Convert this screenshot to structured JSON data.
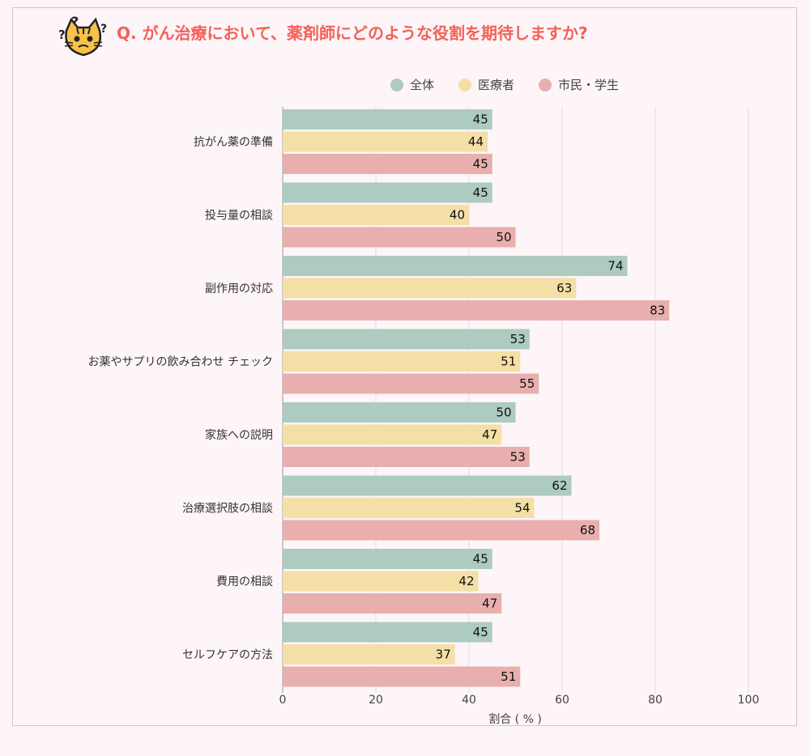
{
  "title": "Q. がん治療において、薬剤師にどのような役割を期待しますか?",
  "icons": {
    "mascot": "confused-cat-icon"
  },
  "colors": {
    "overall": "#adcbbf",
    "medical": "#f4dfa7",
    "citizen": "#e8afae"
  },
  "chart_data": {
    "type": "bar",
    "orientation": "horizontal",
    "xlabel": "割合 ( % )",
    "ylabel": "",
    "xlim": [
      0,
      100
    ],
    "xticks": [
      0,
      20,
      40,
      60,
      80,
      100
    ],
    "grid": true,
    "legend_position": "top-right",
    "categories": [
      "抗がん薬の準備",
      "投与量の相談",
      "副作用の対応",
      "お薬やサプリの飲み合わせ チェック",
      "家族への説明",
      "治療選択肢の相談",
      "費用の相談",
      "セルフケアの方法"
    ],
    "series": [
      {
        "name": "全体",
        "color": "#adcbbf",
        "values": [
          45,
          45,
          74,
          53,
          50,
          62,
          45,
          45
        ]
      },
      {
        "name": "医療者",
        "color": "#f4dfa7",
        "values": [
          44,
          40,
          63,
          51,
          47,
          54,
          42,
          37
        ]
      },
      {
        "name": "市民・学生",
        "color": "#e8afae",
        "values": [
          45,
          50,
          83,
          55,
          53,
          68,
          47,
          51
        ]
      }
    ]
  }
}
